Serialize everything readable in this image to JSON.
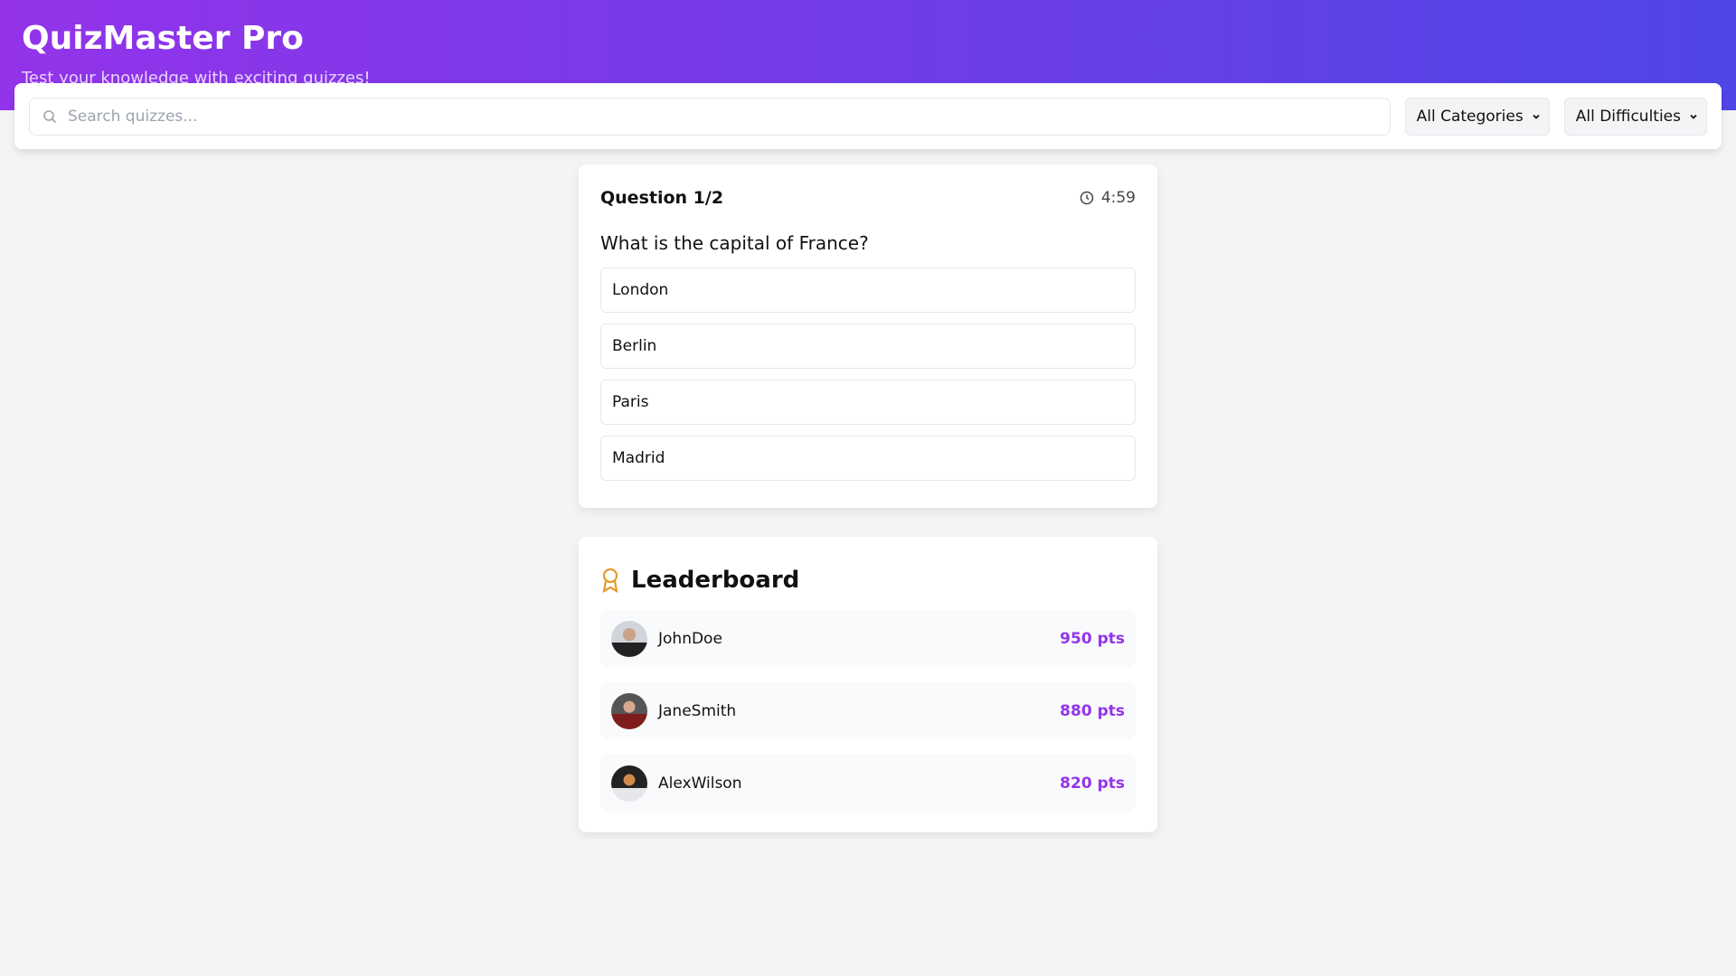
{
  "header": {
    "title": "QuizMaster Pro",
    "subtitle": "Test your knowledge with exciting quizzes!"
  },
  "toolbar": {
    "search_placeholder": "Search quizzes...",
    "category": "All Categories",
    "difficulty": "All Difficulties"
  },
  "quiz": {
    "question_label": "Question 1/2",
    "timer": "4:59",
    "question": "What is the capital of France?",
    "options": [
      "London",
      "Berlin",
      "Paris",
      "Madrid"
    ]
  },
  "leaderboard": {
    "title": "Leaderboard",
    "entries": [
      {
        "name": "JohnDoe",
        "points": "950 pts",
        "avatar_color": "#6b7280"
      },
      {
        "name": "JaneSmith",
        "points": "880 pts",
        "avatar_color": "#7f1d1d"
      },
      {
        "name": "AlexWilson",
        "points": "820 pts",
        "avatar_color": "#1f2937"
      }
    ]
  },
  "colors": {
    "accent": "#9333ea",
    "gradient_end": "#4f46e5",
    "medal": "#e59a2b"
  }
}
